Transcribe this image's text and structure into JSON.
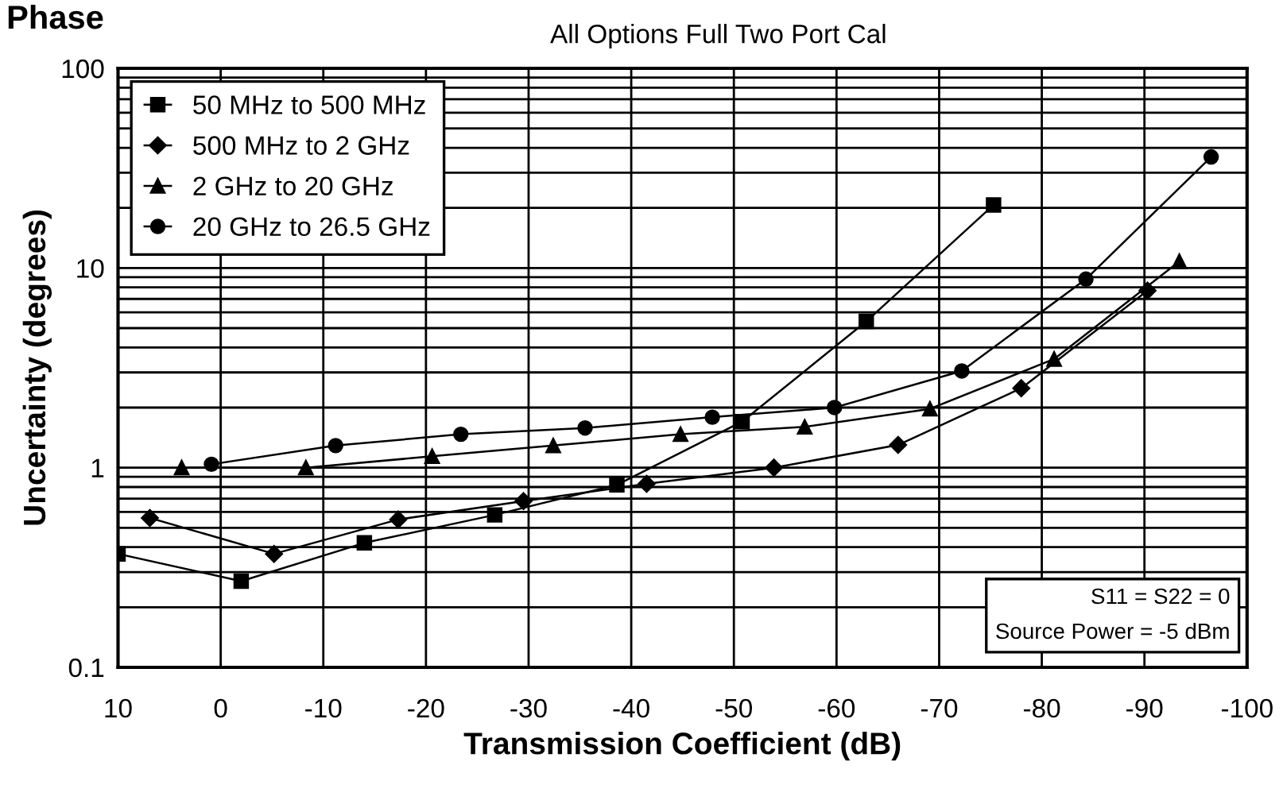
{
  "chart_data": {
    "type": "line",
    "title": "Phase",
    "subtitle": "All Options Full Two Port Cal",
    "xlabel": "Transmission Coefficient (dB)",
    "ylabel": "Uncertainty (degrees)",
    "xlim": [
      10,
      -100
    ],
    "xticks": [
      10,
      0,
      -10,
      -20,
      -30,
      -40,
      -50,
      -60,
      -70,
      -80,
      -90,
      -100
    ],
    "ylim": [
      0.1,
      100
    ],
    "log": "y",
    "yticks": [
      0.1,
      {
        "value": 0.2,
        "label": null
      },
      {
        "value": 0.3,
        "label": null
      },
      {
        "value": 0.4,
        "label": null
      },
      {
        "value": 0.5,
        "label": null
      },
      {
        "value": 0.6,
        "label": null
      },
      {
        "value": 0.7,
        "label": null
      },
      {
        "value": 0.8,
        "label": null
      },
      {
        "value": 0.9,
        "label": null
      },
      1,
      {
        "value": 2,
        "label": null
      },
      {
        "value": 3,
        "label": null
      },
      {
        "value": 4,
        "label": null
      },
      {
        "value": 5,
        "label": null
      },
      {
        "value": 6,
        "label": null
      },
      {
        "value": 7,
        "label": null
      },
      {
        "value": 8,
        "label": null
      },
      {
        "value": 9,
        "label": null
      },
      10,
      {
        "value": 20,
        "label": null
      },
      {
        "value": 30,
        "label": null
      },
      {
        "value": 40,
        "label": null
      },
      {
        "value": 50,
        "label": null
      },
      {
        "value": 60,
        "label": null
      },
      {
        "value": 70,
        "label": null
      },
      {
        "value": 80,
        "label": null
      },
      {
        "value": 90,
        "label": null
      },
      100
    ],
    "grid": true,
    "legend": "top left",
    "line_style": "solid",
    "series": [
      {
        "name": "50 MHz to 500 MHz",
        "color": "#000000",
        "marker": "square",
        "x": [
          10,
          -2,
          -14,
          -26.7,
          -38.6,
          -50.8,
          -62.9,
          -75.3
        ],
        "values": [
          0.37,
          0.27,
          0.42,
          0.58,
          0.82,
          1.7,
          5.4,
          20.7
        ]
      },
      {
        "name": "500 MHz to 2 GHz",
        "color": "#000000",
        "marker": "diamond",
        "x": [
          6.9,
          -5.2,
          -17.3,
          -29.5,
          -41.5,
          -53.9,
          -66,
          -78,
          -90.3
        ],
        "values": [
          0.56,
          0.37,
          0.55,
          0.68,
          0.83,
          1.0,
          1.3,
          2.5,
          7.7
        ]
      },
      {
        "name": "2 GHz to 20 GHz",
        "color": "#000000",
        "marker": "triangle",
        "x": [
          3.8,
          -8.3,
          -20.6,
          -32.4,
          -44.8,
          -56.9,
          -69.1,
          -81.2,
          -93.4
        ],
        "values": [
          1.0,
          1.0,
          1.14,
          1.29,
          1.47,
          1.6,
          1.97,
          3.5,
          10.8
        ]
      },
      {
        "name": "20 GHz to 26.5 GHz",
        "color": "#000000",
        "marker": "circle",
        "x": [
          0.9,
          -11.2,
          -23.4,
          -35.5,
          -47.9,
          -59.8,
          -72.2,
          -84.3,
          -96.5
        ],
        "values": [
          1.04,
          1.29,
          1.47,
          1.58,
          1.79,
          2.0,
          3.05,
          8.8,
          36
        ]
      }
    ],
    "annotations": [
      "S11 = S22 = 0\nSource Power = -5 dBm"
    ]
  }
}
